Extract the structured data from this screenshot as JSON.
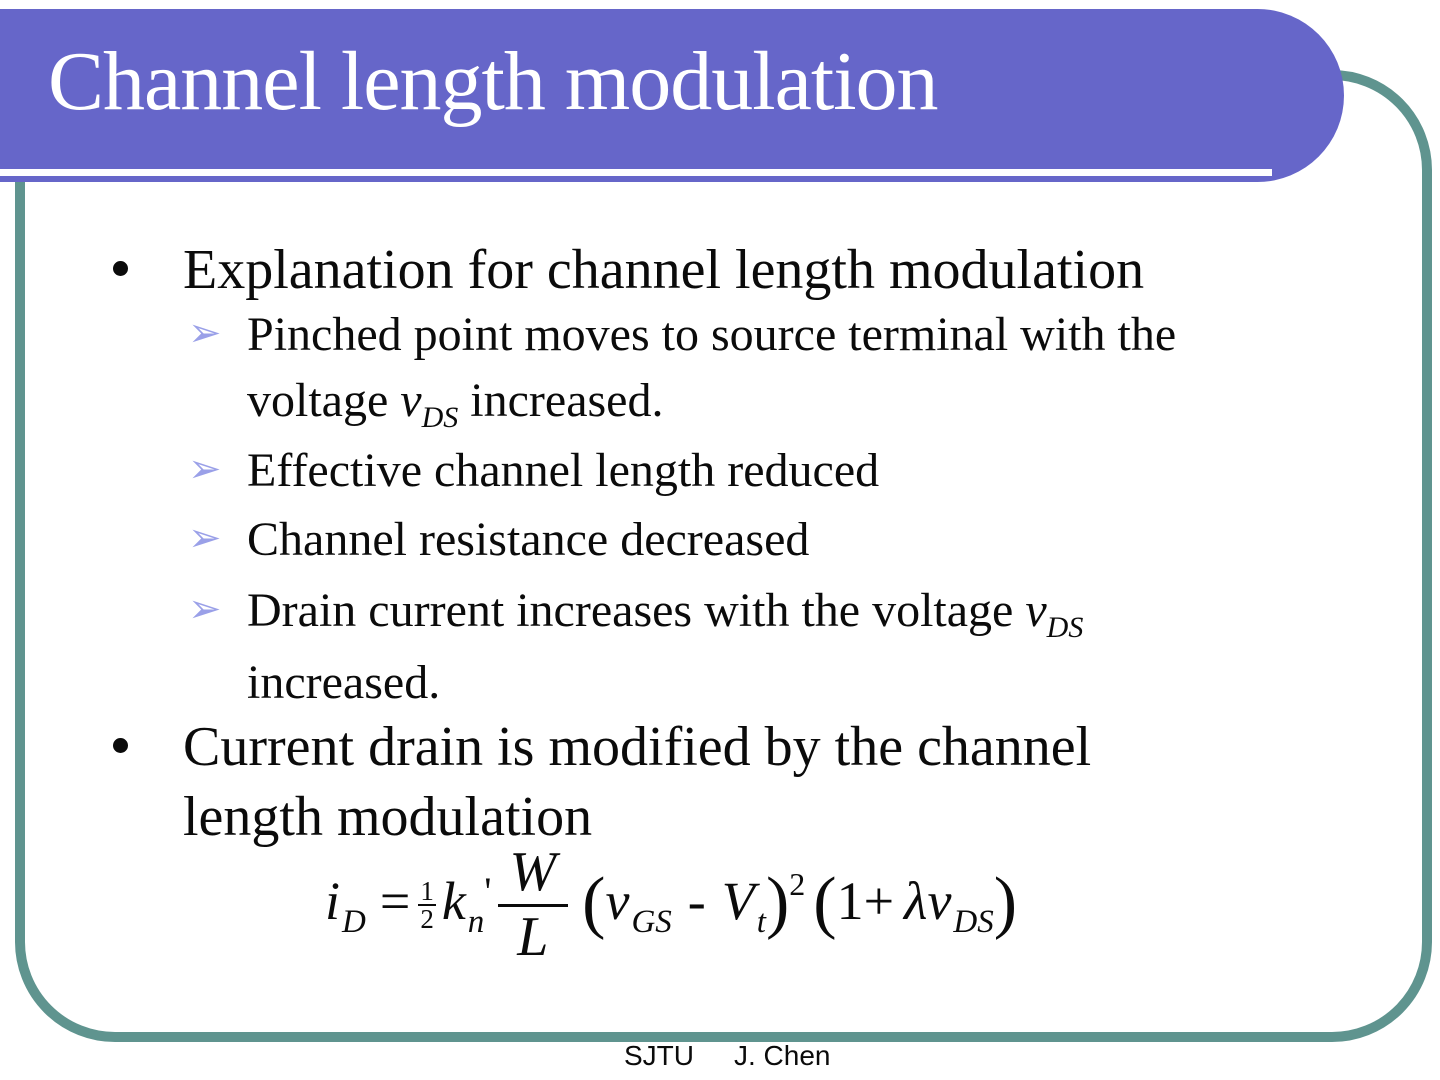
{
  "slide": {
    "title": "Channel length modulation"
  },
  "colors": {
    "banner": "#6666c9",
    "frame_border": "#5f948f",
    "arrow_bullet": "#9aa0e8",
    "title_text": "#ffffff"
  },
  "icons": {
    "arrow_bullet": "➢"
  },
  "bullets": {
    "item1": "Explanation for channel length modulation",
    "sub1_l1": "Pinched point moves to source terminal with the",
    "sub1_l2a": "voltage ",
    "sub1_var": "v",
    "sub1_varsub": "DS",
    "sub1_l2b": " increased.",
    "sub2": "Effective channel length reduced",
    "sub3": "Channel resistance decreased",
    "sub4_l1a": "Drain current increases with the voltage ",
    "sub4_var": "v",
    "sub4_varsub": "DS",
    "sub4_l2": "increased.",
    "item2_l1": "Current drain is modified by the channel",
    "item2_l2": "length modulation"
  },
  "formula": {
    "i": "i",
    "i_sub": "D",
    "eq": "=",
    "half_num": "1",
    "half_den": "2",
    "k": "k",
    "k_sub": "n",
    "prime": "'",
    "num": "W",
    "den": "L",
    "open1": "(",
    "v_gs": "v",
    "v_gs_sub": "GS",
    "minus": "-",
    "v_t": "V",
    "v_t_sub": "t",
    "close1": ")",
    "power": "2",
    "open2": "(",
    "one_plus": "1+",
    "lambda": "λ",
    "v_ds": "v",
    "v_ds_sub": "DS",
    "close2": ")"
  },
  "footer": {
    "institution": "SJTU",
    "author": "J. Chen"
  }
}
